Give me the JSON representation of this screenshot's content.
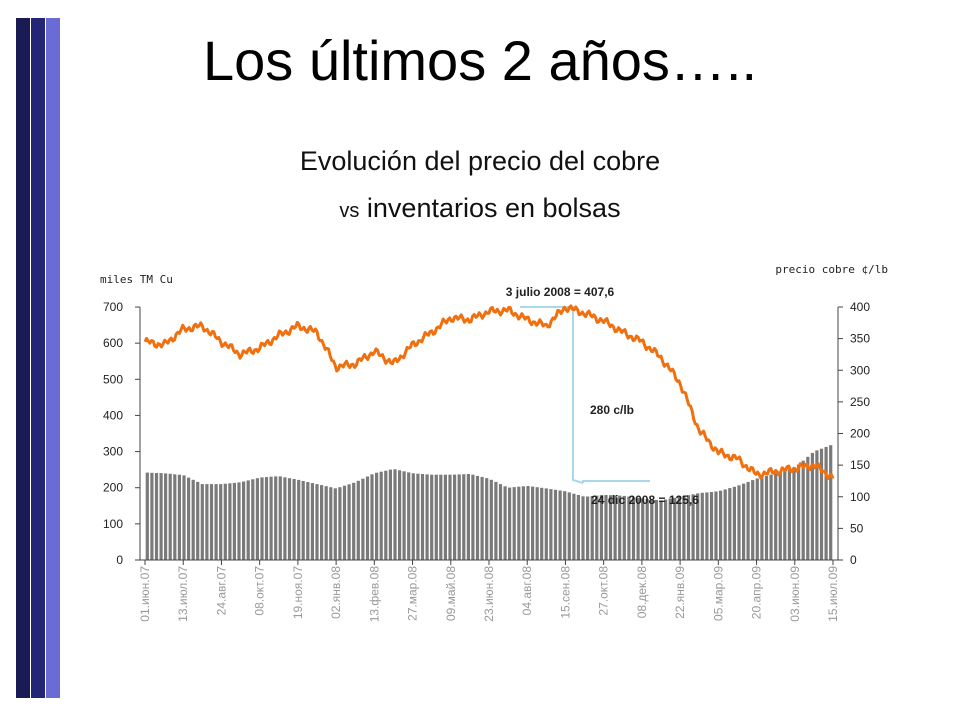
{
  "slide": {
    "title": "Los últimos 2 años…..",
    "subtitle_line1": "Evolución del precio del cobre",
    "subtitle_vs": "vs",
    "subtitle_line2": "inventarios en bolsas"
  },
  "colors": {
    "bars": "#7a7a7a",
    "price_line": "#f07010",
    "annotation_line": "#a9d8e8",
    "deco_dark": "#1a1a55",
    "deco_light": "#6b6bd6"
  },
  "chart_data": {
    "type": "bar",
    "grid": false,
    "left_axis": {
      "label": "miles TM Cu",
      "range": [
        0,
        700
      ],
      "ticks": [
        0,
        100,
        200,
        300,
        400,
        500,
        600,
        700
      ]
    },
    "right_axis": {
      "label": "precio cobre ¢/lb",
      "range": [
        0,
        400
      ],
      "ticks": [
        0,
        50,
        100,
        150,
        200,
        250,
        300,
        350,
        400
      ]
    },
    "x_ticks": [
      "01.июн.07",
      "13.июл.07",
      "24.авг.07",
      "08.окт.07",
      "19.ноя.07",
      "02.янв.08",
      "13.фев.08",
      "27.мар.08",
      "09.май.08",
      "23.июн.08",
      "04.авг.08",
      "15.сен.08",
      "27.окт.08",
      "08.дек.08",
      "22.янв.09",
      "05.мар.09",
      "20.апр.09",
      "03.июн.09",
      "15.июл.09"
    ],
    "series": [
      {
        "kind": "bar",
        "axis": "left",
        "x": [
          0.0,
          0.5,
          1.0,
          1.5,
          2.0,
          2.5,
          3.0,
          3.5,
          4.0,
          4.5,
          5.0,
          5.5,
          6.0,
          6.5,
          7.0,
          7.5,
          8.0,
          8.5,
          9.0,
          9.5,
          10.0,
          10.5,
          11.0,
          11.5,
          12.0,
          12.5,
          13.0,
          13.5,
          14.0,
          14.5,
          15.0,
          15.5,
          16.0,
          16.5,
          17.0,
          17.5,
          18.0
        ],
        "values": [
          242,
          240,
          235,
          210,
          210,
          215,
          228,
          232,
          222,
          210,
          198,
          215,
          240,
          252,
          240,
          236,
          236,
          238,
          225,
          200,
          205,
          198,
          190,
          175,
          180,
          178,
          170,
          165,
          175,
          185,
          190,
          205,
          225,
          240,
          255,
          300,
          320
        ]
      },
      {
        "kind": "line",
        "name": "precio cobre",
        "axis": "right",
        "x": [
          0.0,
          0.5,
          1.0,
          1.5,
          2.0,
          2.5,
          3.0,
          3.5,
          4.0,
          4.5,
          5.0,
          5.5,
          6.0,
          6.5,
          7.0,
          7.5,
          8.0,
          8.5,
          9.0,
          9.5,
          10.0,
          10.5,
          11.0,
          11.5,
          12.0,
          12.5,
          13.0,
          13.5,
          14.0,
          14.5,
          15.0,
          15.5,
          16.0,
          16.5,
          17.0,
          17.5,
          18.0
        ],
        "values": [
          345,
          340,
          365,
          370,
          345,
          325,
          335,
          355,
          370,
          360,
          305,
          310,
          330,
          310,
          340,
          360,
          383,
          380,
          393,
          395,
          380,
          370,
          400,
          390,
          378,
          360,
          345,
          320,
          280,
          205,
          170,
          160,
          135,
          140,
          145,
          150,
          130
        ]
      }
    ],
    "annotations": [
      "3 julio 2008 = 407,6",
      "280 c/lb",
      "24 dic 2008 = 125,6"
    ]
  }
}
